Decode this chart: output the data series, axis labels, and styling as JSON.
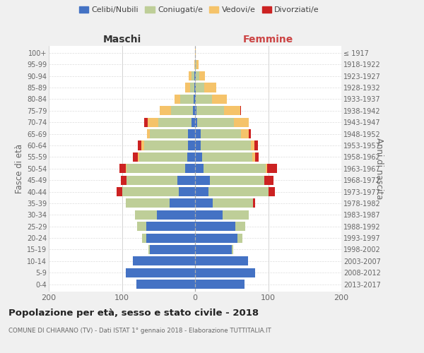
{
  "age_groups": [
    "0-4",
    "5-9",
    "10-14",
    "15-19",
    "20-24",
    "25-29",
    "30-34",
    "35-39",
    "40-44",
    "45-49",
    "50-54",
    "55-59",
    "60-64",
    "65-69",
    "70-74",
    "75-79",
    "80-84",
    "85-89",
    "90-94",
    "95-99",
    "100+"
  ],
  "birth_years": [
    "2013-2017",
    "2008-2012",
    "2003-2007",
    "1998-2002",
    "1993-1997",
    "1988-1992",
    "1983-1987",
    "1978-1982",
    "1973-1977",
    "1968-1972",
    "1963-1967",
    "1958-1962",
    "1953-1957",
    "1948-1952",
    "1943-1947",
    "1938-1942",
    "1933-1937",
    "1928-1932",
    "1923-1927",
    "1918-1922",
    "≤ 1917"
  ],
  "colors": {
    "celibi": "#4472C4",
    "coniugati": "#BECE98",
    "vedovi": "#F5C36A",
    "divorziati": "#CC2222"
  },
  "maschi": {
    "celibi": [
      80,
      95,
      85,
      62,
      67,
      67,
      52,
      35,
      22,
      24,
      14,
      11,
      10,
      10,
      5,
      3,
      2,
      1,
      1,
      0,
      0
    ],
    "coniugati": [
      0,
      0,
      0,
      2,
      5,
      12,
      30,
      60,
      78,
      70,
      80,
      65,
      60,
      52,
      45,
      30,
      18,
      6,
      4,
      0,
      0
    ],
    "vedovi": [
      0,
      0,
      0,
      0,
      0,
      0,
      0,
      0,
      0,
      0,
      1,
      2,
      3,
      4,
      15,
      15,
      8,
      7,
      4,
      1,
      0
    ],
    "divorziati": [
      0,
      0,
      0,
      0,
      0,
      0,
      0,
      0,
      7,
      7,
      8,
      7,
      5,
      0,
      5,
      0,
      0,
      0,
      0,
      0,
      0
    ]
  },
  "femmine": {
    "celibi": [
      68,
      82,
      72,
      50,
      58,
      55,
      38,
      24,
      18,
      20,
      12,
      10,
      8,
      8,
      3,
      2,
      1,
      1,
      1,
      0,
      0
    ],
    "coniugati": [
      0,
      0,
      0,
      2,
      7,
      14,
      35,
      55,
      82,
      75,
      85,
      68,
      68,
      55,
      50,
      38,
      22,
      12,
      5,
      2,
      0
    ],
    "vedovi": [
      0,
      0,
      0,
      0,
      0,
      0,
      0,
      0,
      0,
      0,
      2,
      4,
      5,
      10,
      20,
      22,
      20,
      16,
      8,
      3,
      1
    ],
    "divorziati": [
      0,
      0,
      0,
      0,
      0,
      0,
      0,
      3,
      9,
      12,
      13,
      5,
      5,
      3,
      0,
      1,
      0,
      0,
      0,
      0,
      0
    ]
  },
  "title": "Popolazione per età, sesso e stato civile - 2018",
  "subtitle": "COMUNE DI CHIARANO (TV) - Dati ISTAT 1° gennaio 2018 - Elaborazione TUTTITALIA.IT",
  "header_left": "Maschi",
  "header_right": "Femmine",
  "ylabel_left": "Fasce di età",
  "ylabel_right": "Anni di nascita",
  "legend_labels": [
    "Celibi/Nubili",
    "Coniugati/e",
    "Vedovi/e",
    "Divorziati/e"
  ],
  "xlim": 200,
  "background_color": "#f0f0f0",
  "plot_background": "#ffffff"
}
